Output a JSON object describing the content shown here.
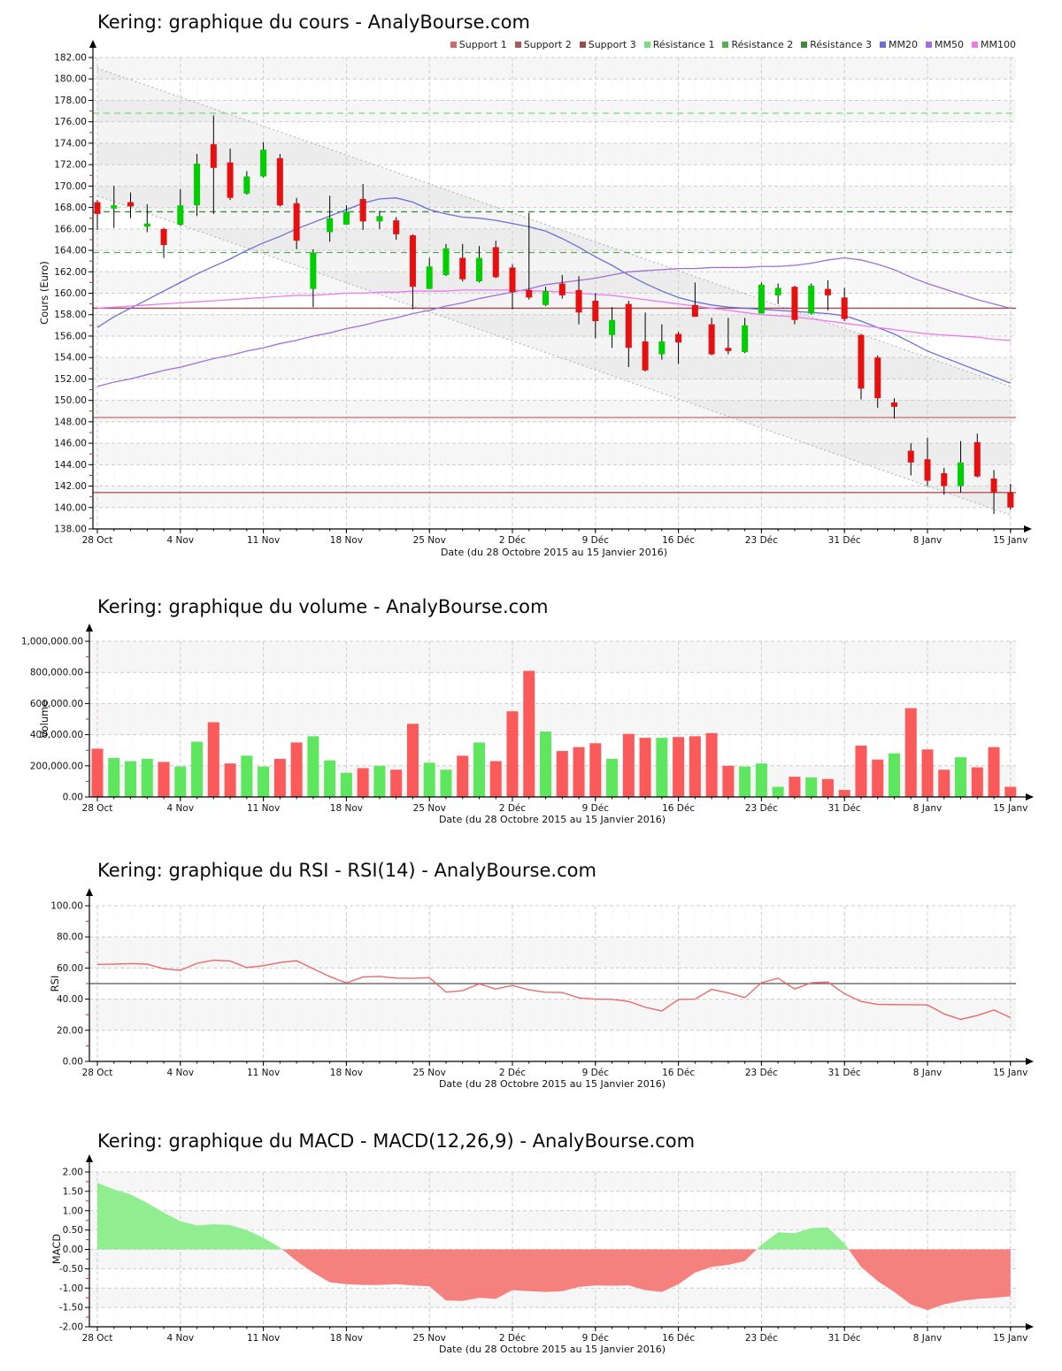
{
  "chart_data": [
    {
      "type": "candlestick",
      "title": "Kering: graphique du cours - AnalyBourse.com",
      "xlabel": "Date (du 28 Octobre 2015 au 15 Janvier 2016)",
      "ylabel": "Cours (Euro)",
      "ylim": [
        138,
        182
      ],
      "ystep": 2,
      "y_tick_labels": [
        "182.00",
        "180.00",
        "178.00",
        "176.00",
        "174.00",
        "172.00",
        "170.00",
        "168.00",
        "166.00",
        "164.00",
        "162.00",
        "160.00",
        "158.00",
        "156.00",
        "154.00",
        "152.00",
        "150.00",
        "148.00",
        "146.00",
        "144.00",
        "142.00",
        "140.00",
        "138.00"
      ],
      "x_tick_labels": [
        "28 Oct",
        "4 Nov",
        "11 Nov",
        "18 Nov",
        "25 Nov",
        "2 Déc",
        "9 Déc",
        "16 Déc",
        "23 Déc",
        "31 Déc",
        "8 Janv",
        "15 Janv"
      ],
      "x_tick_days": [
        0,
        5,
        10,
        15,
        20,
        25,
        30,
        35,
        40,
        45,
        50,
        55
      ],
      "up_color": "#00CE00",
      "down_color": "#E61010",
      "candles": [
        [
          168.5,
          168.7,
          165.9,
          167.4
        ],
        [
          167.9,
          170.0,
          166.1,
          168.2
        ],
        [
          168.5,
          169.4,
          167.0,
          168.1
        ],
        [
          166.2,
          168.3,
          165.7,
          166.5
        ],
        [
          166.0,
          166.1,
          163.3,
          164.5
        ],
        [
          166.4,
          169.7,
          166.3,
          168.2
        ],
        [
          168.2,
          173.0,
          167.2,
          172.1
        ],
        [
          173.9,
          176.6,
          167.4,
          171.7
        ],
        [
          172.2,
          173.5,
          168.7,
          168.9
        ],
        [
          169.3,
          171.4,
          169.2,
          170.9
        ],
        [
          170.9,
          174.1,
          170.8,
          173.4
        ],
        [
          172.6,
          173.0,
          168.1,
          168.2
        ],
        [
          168.4,
          168.9,
          164.1,
          164.9
        ],
        [
          160.4,
          164.1,
          158.7,
          163.8
        ],
        [
          165.7,
          169.1,
          164.8,
          167.0
        ],
        [
          166.4,
          168.2,
          166.4,
          167.6
        ],
        [
          168.8,
          170.2,
          165.9,
          166.7
        ],
        [
          166.7,
          167.7,
          166.0,
          167.2
        ],
        [
          166.8,
          167.1,
          165.0,
          165.5
        ],
        [
          165.4,
          165.5,
          158.5,
          160.6
        ],
        [
          160.4,
          163.3,
          160.4,
          162.5
        ],
        [
          161.7,
          164.6,
          161.6,
          164.2
        ],
        [
          163.3,
          164.6,
          161.1,
          161.3
        ],
        [
          161.1,
          164.4,
          161.0,
          163.3
        ],
        [
          164.3,
          164.9,
          161.4,
          161.5
        ],
        [
          162.4,
          162.7,
          158.5,
          160.1
        ],
        [
          160.3,
          167.5,
          159.4,
          159.6
        ],
        [
          158.9,
          160.6,
          158.8,
          160.2
        ],
        [
          160.9,
          161.7,
          159.5,
          159.8
        ],
        [
          160.3,
          161.6,
          157.1,
          158.2
        ],
        [
          159.3,
          160.0,
          155.8,
          157.4
        ],
        [
          156.1,
          158.7,
          154.9,
          157.5
        ],
        [
          159.0,
          159.3,
          153.1,
          154.9
        ],
        [
          155.5,
          158.2,
          152.7,
          152.8
        ],
        [
          154.3,
          157.1,
          153.8,
          155.5
        ],
        [
          156.2,
          156.4,
          153.4,
          155.4
        ],
        [
          158.9,
          161.0,
          157.8,
          157.8
        ],
        [
          157.1,
          157.7,
          154.2,
          154.3
        ],
        [
          154.9,
          157.7,
          154.3,
          154.6
        ],
        [
          154.5,
          157.7,
          154.4,
          157.0
        ],
        [
          158.1,
          161.0,
          158.1,
          160.8
        ],
        [
          159.8,
          160.9,
          159.0,
          160.5
        ],
        [
          160.6,
          160.7,
          157.1,
          157.5
        ],
        [
          158.1,
          160.9,
          158.0,
          160.7
        ],
        [
          160.4,
          161.2,
          158.4,
          159.8
        ],
        [
          159.6,
          160.5,
          157.4,
          157.6
        ],
        [
          156.1,
          156.2,
          150.1,
          151.1
        ],
        [
          154.0,
          154.2,
          149.3,
          150.2
        ],
        [
          149.8,
          150.2,
          148.3,
          149.4
        ],
        [
          145.3,
          146.0,
          143.0,
          144.2
        ],
        [
          144.5,
          146.5,
          142.0,
          142.5
        ],
        [
          143.2,
          143.7,
          141.2,
          142.0
        ],
        [
          142.0,
          146.2,
          141.4,
          144.2
        ],
        [
          146.1,
          146.9,
          142.8,
          142.9
        ],
        [
          142.7,
          143.5,
          139.4,
          141.4
        ],
        [
          141.4,
          142.2,
          139.8,
          140.0
        ]
      ],
      "moving_averages": [
        {
          "name": "MM20",
          "color": "#6E6ED8",
          "values": [
            156.8,
            157.8,
            158.6,
            159.4,
            160.2,
            161.0,
            161.8,
            162.5,
            163.2,
            164.0,
            164.7,
            165.3,
            166.0,
            166.6,
            167.2,
            167.8,
            168.4,
            168.8,
            168.9,
            168.5,
            167.8,
            167.4,
            167.1,
            167.0,
            166.8,
            166.5,
            166.2,
            165.8,
            165.1,
            164.3,
            163.4,
            162.6,
            161.7,
            160.9,
            160.2,
            159.6,
            159.2,
            158.9,
            158.7,
            158.6,
            158.5,
            158.4,
            158.3,
            158.2,
            158.1,
            157.9,
            157.4,
            156.8,
            156.2,
            155.4,
            154.6,
            154.0,
            153.4,
            152.8,
            152.2,
            151.6
          ]
        },
        {
          "name": "MM50",
          "color": "#A06FDC",
          "values": [
            151.3,
            151.7,
            152.0,
            152.4,
            152.8,
            153.1,
            153.5,
            153.9,
            154.2,
            154.6,
            154.9,
            155.3,
            155.6,
            156.0,
            156.3,
            156.7,
            157.0,
            157.4,
            157.7,
            158.1,
            158.4,
            158.8,
            159.1,
            159.5,
            159.8,
            160.1,
            160.4,
            160.8,
            161.0,
            161.2,
            161.4,
            161.7,
            162.0,
            162.1,
            162.2,
            162.3,
            162.3,
            162.4,
            162.4,
            162.4,
            162.5,
            162.5,
            162.6,
            162.8,
            163.1,
            163.3,
            163.1,
            162.7,
            162.2,
            161.5,
            160.9,
            160.4,
            159.9,
            159.4,
            159.0,
            158.6
          ]
        },
        {
          "name": "MM100",
          "color": "#EE7AEE",
          "values": [
            158.6,
            158.7,
            158.8,
            158.9,
            159.0,
            159.1,
            159.2,
            159.3,
            159.4,
            159.5,
            159.6,
            159.7,
            159.8,
            159.8,
            159.9,
            160.0,
            160.0,
            160.1,
            160.1,
            160.2,
            160.2,
            160.2,
            160.3,
            160.3,
            160.3,
            160.3,
            160.2,
            160.2,
            160.1,
            160.0,
            159.9,
            159.8,
            159.6,
            159.4,
            159.2,
            159.0,
            158.8,
            158.6,
            158.4,
            158.2,
            158.0,
            157.9,
            157.8,
            157.6,
            157.4,
            157.2,
            157.0,
            156.8,
            156.6,
            156.4,
            156.2,
            156.1,
            156.0,
            155.9,
            155.7,
            155.6
          ]
        }
      ],
      "supports": [
        {
          "name": "Support 1",
          "value": 148.4,
          "color": "#CC6A6A"
        },
        {
          "name": "Support 2",
          "value": 141.4,
          "color": "#B05858"
        },
        {
          "name": "Support 3",
          "value": 158.6,
          "color": "#9C4A4A"
        }
      ],
      "resistances": [
        {
          "name": "Résistance 1",
          "value": 176.8,
          "color": "#7ADC7A"
        },
        {
          "name": "Résistance 2",
          "value": 163.8,
          "color": "#52B052"
        },
        {
          "name": "Résistance 3",
          "value": 167.6,
          "color": "#3C8C3C"
        }
      ],
      "channel": {
        "upper": [
          181.0,
          151.3
        ],
        "lower": [
          169.1,
          139.3
        ],
        "color": "#B8B8B8"
      }
    },
    {
      "type": "bar",
      "title": "Kering: graphique du volume - AnalyBourse.com",
      "xlabel": "Date (du 28 Octobre 2015 au 15 Janvier 2016)",
      "ylabel": "Volume",
      "ylim": [
        0,
        1000000
      ],
      "ystep": 200000,
      "y_tick_labels": [
        "1,000,000.00",
        "800,000.00",
        "600,000.00",
        "400,000.00",
        "200,000.00",
        "0.00"
      ],
      "x_tick_labels": [
        "28 Oct",
        "4 Nov",
        "11 Nov",
        "18 Nov",
        "25 Nov",
        "2 Déc",
        "9 Déc",
        "16 Déc",
        "23 Déc",
        "31 Déc",
        "8 Janv",
        "15 Janv"
      ],
      "x_tick_days": [
        0,
        5,
        10,
        15,
        20,
        25,
        30,
        35,
        40,
        45,
        50,
        55
      ],
      "up_color": "#5FE65F",
      "down_color": "#FA5A5A",
      "values": [
        310000,
        250000,
        230000,
        245000,
        225000,
        195000,
        355000,
        480000,
        215000,
        265000,
        195000,
        245000,
        350000,
        390000,
        235000,
        155000,
        185000,
        200000,
        175000,
        470000,
        220000,
        175000,
        265000,
        350000,
        230000,
        550000,
        810000,
        420000,
        295000,
        320000,
        345000,
        245000,
        405000,
        380000,
        380000,
        385000,
        390000,
        410000,
        200000,
        195000,
        215000,
        65000,
        130000,
        125000,
        115000,
        45000,
        330000,
        240000,
        280000,
        570000,
        305000,
        175000,
        255000,
        190000,
        320000,
        65000
      ],
      "bar_directions": [
        "down",
        "up",
        "up",
        "up",
        "down",
        "up",
        "up",
        "down",
        "down",
        "up",
        "up",
        "down",
        "down",
        "up",
        "up",
        "up",
        "down",
        "up",
        "down",
        "down",
        "up",
        "up",
        "down",
        "up",
        "down",
        "down",
        "down",
        "up",
        "down",
        "down",
        "down",
        "up",
        "down",
        "down",
        "up",
        "down",
        "down",
        "down",
        "down",
        "up",
        "up",
        "up",
        "down",
        "up",
        "down",
        "down",
        "down",
        "down",
        "up",
        "down",
        "down",
        "down",
        "up",
        "down",
        "down",
        "down"
      ]
    },
    {
      "type": "line",
      "title": "Kering: graphique du RSI - RSI(14) - AnalyBourse.com",
      "xlabel": "Date (du 28 Octobre 2015 au 15 Janvier 2016)",
      "ylabel": "RSI",
      "ylim": [
        0,
        100
      ],
      "ystep": 20,
      "y_tick_labels": [
        "100.00",
        "80.00",
        "60.00",
        "40.00",
        "20.00",
        "0.00"
      ],
      "x_tick_labels": [
        "28 Oct",
        "4 Nov",
        "11 Nov",
        "18 Nov",
        "25 Nov",
        "2 Déc",
        "9 Déc",
        "16 Déc",
        "23 Déc",
        "31 Déc",
        "8 Janv",
        "15 Janv"
      ],
      "x_tick_days": [
        0,
        5,
        10,
        15,
        20,
        25,
        30,
        35,
        40,
        45,
        50,
        55
      ],
      "line_color": "#EE6A6A",
      "mid_line": 50,
      "values": [
        62.3,
        62.5,
        62.8,
        62.5,
        59.5,
        58.6,
        63.0,
        65.0,
        64.5,
        60.3,
        61.5,
        63.5,
        64.7,
        59.5,
        54.5,
        50.4,
        54.3,
        54.6,
        53.5,
        53.4,
        53.8,
        44.5,
        45.5,
        49.8,
        46.5,
        48.8,
        46.0,
        44.4,
        44.3,
        40.8,
        40.0,
        39.9,
        38.5,
        34.8,
        32.4,
        39.8,
        40.0,
        46.3,
        44.0,
        41.0,
        50.5,
        53.5,
        46.5,
        50.5,
        51.0,
        43.5,
        38.5,
        36.6,
        36.5,
        36.4,
        36.3,
        30.5,
        27.0,
        29.5,
        33.0,
        28.2
      ]
    },
    {
      "type": "area",
      "title": "Kering: graphique du MACD - MACD(12,26,9) - AnalyBourse.com",
      "xlabel": "Date (du 28 Octobre 2015 au 15 Janvier 2016)",
      "ylabel": "MACD",
      "ylim": [
        -2,
        2
      ],
      "ystep": 0.5,
      "y_tick_labels": [
        "2.00",
        "1.50",
        "1.00",
        "0.50",
        "0.00",
        "-0.50",
        "-1.00",
        "-1.50",
        "-2.00"
      ],
      "x_tick_labels": [
        "28 Oct",
        "4 Nov",
        "11 Nov",
        "18 Nov",
        "25 Nov",
        "2 Déc",
        "9 Déc",
        "16 Déc",
        "23 Déc",
        "31 Déc",
        "8 Janv",
        "15 Janv"
      ],
      "x_tick_days": [
        0,
        5,
        10,
        15,
        20,
        25,
        30,
        35,
        40,
        45,
        50,
        55
      ],
      "pos_color": "#90EE90",
      "neg_color": "#F5817F",
      "values": [
        1.72,
        1.55,
        1.42,
        1.2,
        0.95,
        0.73,
        0.62,
        0.65,
        0.63,
        0.5,
        0.3,
        0.05,
        -0.3,
        -0.6,
        -0.85,
        -0.9,
        -0.92,
        -0.92,
        -0.9,
        -0.93,
        -0.95,
        -1.32,
        -1.33,
        -1.25,
        -1.28,
        -1.05,
        -1.08,
        -1.1,
        -1.08,
        -0.97,
        -0.93,
        -0.94,
        -0.93,
        -1.05,
        -1.1,
        -0.9,
        -0.6,
        -0.45,
        -0.4,
        -0.3,
        0.12,
        0.44,
        0.42,
        0.55,
        0.57,
        0.15,
        -0.45,
        -0.82,
        -1.1,
        -1.42,
        -1.57,
        -1.42,
        -1.33,
        -1.28,
        -1.25,
        -1.21
      ]
    }
  ]
}
